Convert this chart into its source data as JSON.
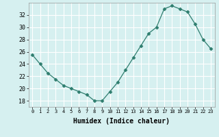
{
  "x": [
    0,
    1,
    2,
    3,
    4,
    5,
    6,
    7,
    8,
    9,
    10,
    11,
    12,
    13,
    14,
    15,
    16,
    17,
    18,
    19,
    20,
    21,
    22,
    23
  ],
  "y": [
    25.5,
    24,
    22.5,
    21.5,
    20.5,
    20,
    19.5,
    19,
    18,
    18,
    19.5,
    21,
    23,
    25,
    27,
    29,
    30,
    33,
    33.5,
    33,
    32.5,
    30.5,
    28,
    26.5
  ],
  "xlabel": "Humidex (Indice chaleur)",
  "line_color": "#2e7d6e",
  "marker": "D",
  "marker_size": 2.5,
  "bg_color": "#d6f0f0",
  "grid_color": "#ffffff",
  "yticks": [
    18,
    20,
    22,
    24,
    26,
    28,
    30,
    32
  ],
  "xticks": [
    0,
    1,
    2,
    3,
    4,
    5,
    6,
    7,
    8,
    9,
    10,
    11,
    12,
    13,
    14,
    15,
    16,
    17,
    18,
    19,
    20,
    21,
    22,
    23
  ],
  "ylim": [
    17.0,
    34.0
  ],
  "xlim": [
    -0.5,
    23.5
  ]
}
